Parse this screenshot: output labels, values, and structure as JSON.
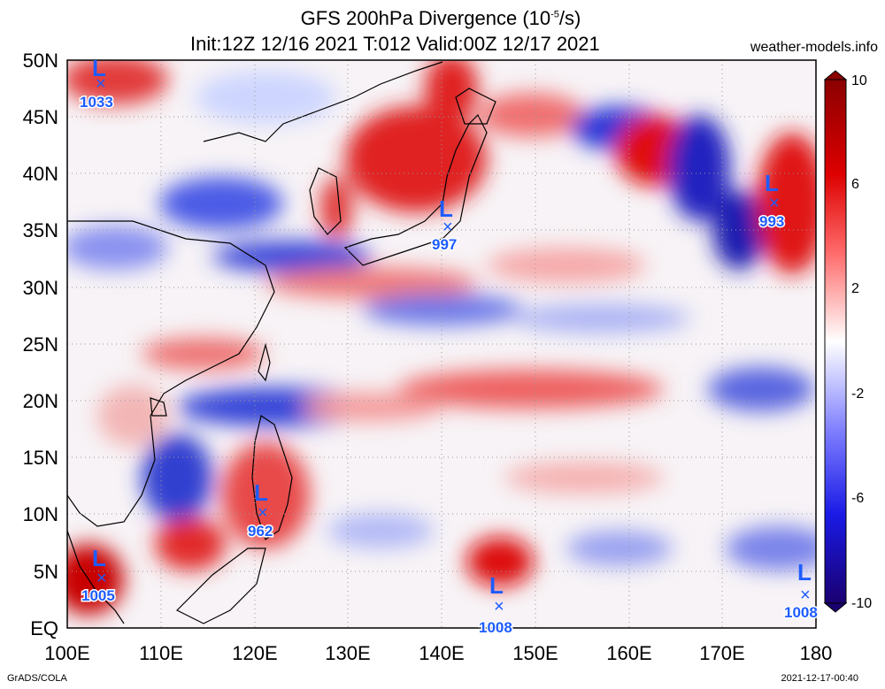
{
  "header": {
    "title_prefix": "GFS 200hPa Divergence (10",
    "title_exp": "-5",
    "title_suffix": "/s)",
    "subtitle": "Init:12Z 12/16 2021 T:012 Valid:00Z 12/17 2021",
    "site": "weather-models.info"
  },
  "footer": {
    "left": "GrADS/COLA",
    "right": "2021-12-17-00:40"
  },
  "map": {
    "lat_labels": [
      "50N",
      "45N",
      "40N",
      "35N",
      "30N",
      "25N",
      "20N",
      "15N",
      "10N",
      "5N",
      "EQ"
    ],
    "lon_labels": [
      "100E",
      "110E",
      "120E",
      "130E",
      "140E",
      "150E",
      "160E",
      "170E",
      "180"
    ]
  },
  "colorbar": {
    "labels": [
      "10",
      "6",
      "2",
      "-2",
      "-6",
      "-10"
    ],
    "colors": {
      "high": "#8b0000",
      "mid_high": "#ff0000",
      "neutral": "#ffffff",
      "mid_low": "#1010ff",
      "low": "#1a0070"
    }
  },
  "lows": [
    {
      "letter": "L",
      "mark": "×",
      "pressure": "1033"
    },
    {
      "letter": "L",
      "mark": "×",
      "pressure": "997"
    },
    {
      "letter": "L",
      "mark": "×",
      "pressure": "993"
    },
    {
      "letter": "L",
      "mark": "×",
      "pressure": "962"
    },
    {
      "letter": "L",
      "mark": "×",
      "pressure": "1005"
    },
    {
      "letter": "L",
      "mark": "×",
      "pressure": "1008"
    },
    {
      "letter": "L",
      "mark": "×",
      "pressure": "1008"
    }
  ]
}
